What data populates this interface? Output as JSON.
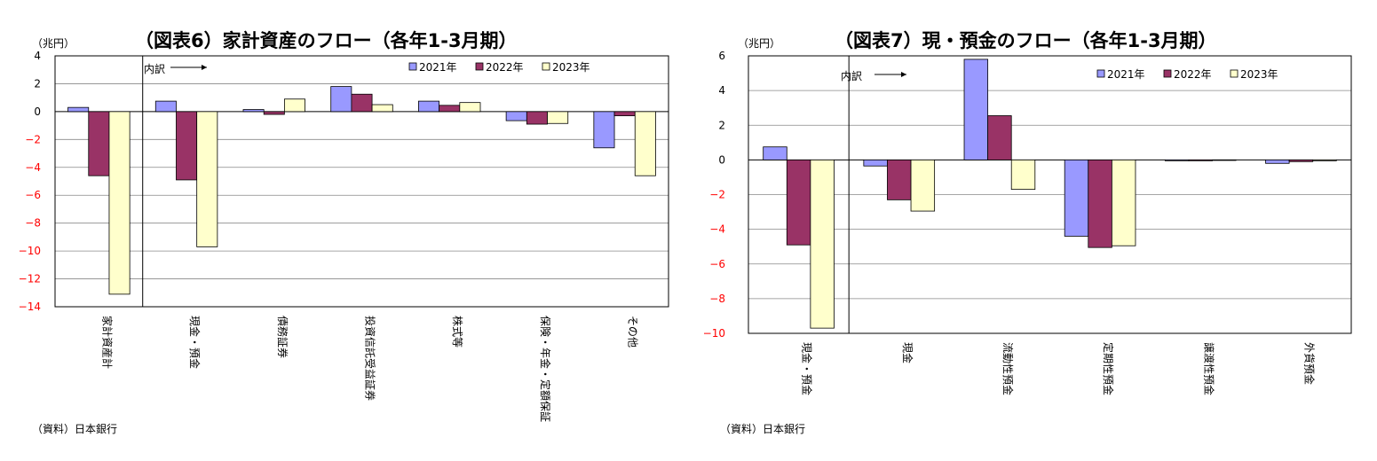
{
  "chart_data": [
    {
      "type": "bar",
      "title": "（図表6）家計資産のフロー（各年1-3月期）",
      "unit": "（兆円）",
      "source": "（資料）日本銀行",
      "annotation": "内訳",
      "categories": [
        "家計資産計",
        "現金・預金",
        "債務証券",
        "投資信託受益証券",
        "株式等",
        "保険・年金・定額保証",
        "その他"
      ],
      "series": [
        {
          "name": "2021年",
          "color": "#9999ff",
          "values": [
            0.3,
            0.75,
            0.15,
            1.8,
            0.75,
            -0.65,
            -2.6
          ]
        },
        {
          "name": "2022年",
          "color": "#993366",
          "values": [
            -4.6,
            -4.9,
            -0.2,
            1.25,
            0.45,
            -0.9,
            -0.3
          ]
        },
        {
          "name": "2023年",
          "color": "#ffffcc",
          "values": [
            -13.1,
            -9.7,
            0.9,
            0.5,
            0.65,
            -0.85,
            -4.6
          ]
        }
      ],
      "ylim": [
        -14,
        4
      ],
      "yticks": [
        4,
        2,
        0,
        -2,
        -4,
        -6,
        -8,
        -10,
        -12,
        -14
      ],
      "ytick_labels": [
        "4",
        "2",
        "0",
        "−2",
        "−4",
        "−6",
        "−8",
        "−10",
        "−12",
        "−14"
      ],
      "grid": true,
      "legend": "top-right"
    },
    {
      "type": "bar",
      "title": "（図表7）現・預金のフロー（各年1-3月期）",
      "unit": "（兆円）",
      "source": "（資料）日本銀行",
      "annotation": "内訳",
      "categories": [
        "現金・預金",
        "現金",
        "流動性預金",
        "定期性預金",
        "譲渡性預金",
        "外貨預金"
      ],
      "series": [
        {
          "name": "2021年",
          "color": "#9999ff",
          "values": [
            0.75,
            -0.35,
            5.8,
            -4.4,
            -0.05,
            -0.2
          ]
        },
        {
          "name": "2022年",
          "color": "#993366",
          "values": [
            -4.9,
            -2.3,
            2.55,
            -5.05,
            -0.05,
            -0.1
          ]
        },
        {
          "name": "2023年",
          "color": "#ffffcc",
          "values": [
            -9.7,
            -2.95,
            -1.7,
            -4.95,
            0.0,
            -0.05
          ]
        }
      ],
      "ylim": [
        -10,
        6
      ],
      "yticks": [
        6,
        4,
        2,
        0,
        -2,
        -4,
        -6,
        -8,
        -10
      ],
      "ytick_labels": [
        "6",
        "4",
        "2",
        "0",
        "−2",
        "−4",
        "−6",
        "−8",
        "−10"
      ],
      "grid": true,
      "legend": "top-right"
    }
  ]
}
